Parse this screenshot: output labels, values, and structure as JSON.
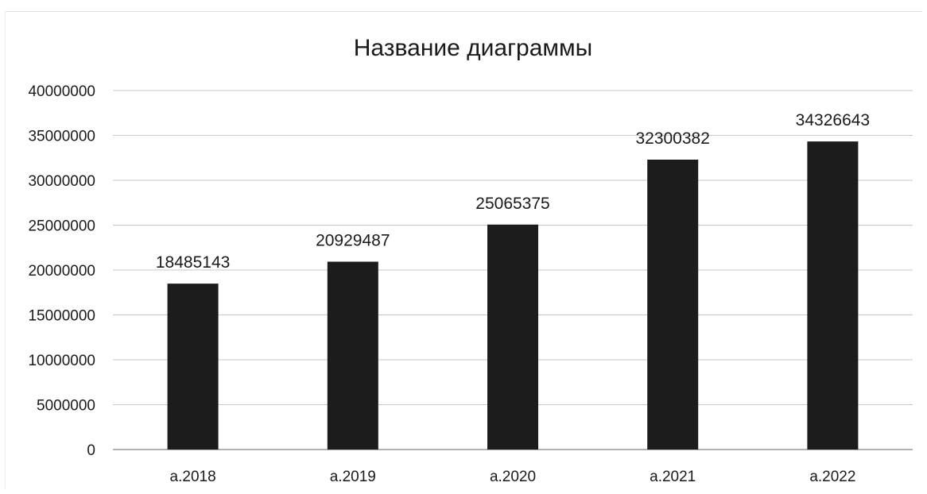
{
  "chart_data": {
    "type": "bar",
    "title": "Название диаграммы",
    "xlabel": "",
    "ylabel": "",
    "categories": [
      "a.2018",
      "a.2019",
      "a.2020",
      "a.2021",
      "a.2022"
    ],
    "values": [
      18485143,
      20929487,
      25065375,
      32300382,
      34326643
    ],
    "data_labels": [
      "18485143",
      "20929487",
      "25065375",
      "32300382",
      "34326643"
    ],
    "ylim": [
      0,
      40000000
    ],
    "yticks": [
      0,
      5000000,
      10000000,
      15000000,
      20000000,
      25000000,
      30000000,
      35000000,
      40000000
    ],
    "ytick_labels": [
      "0",
      "5000000",
      "10000000",
      "15000000",
      "20000000",
      "25000000",
      "30000000",
      "35000000",
      "40000000"
    ],
    "grid": true,
    "legend": "none",
    "bar_color": "#1c1c1c",
    "grid_color": "#c8c8c8"
  }
}
